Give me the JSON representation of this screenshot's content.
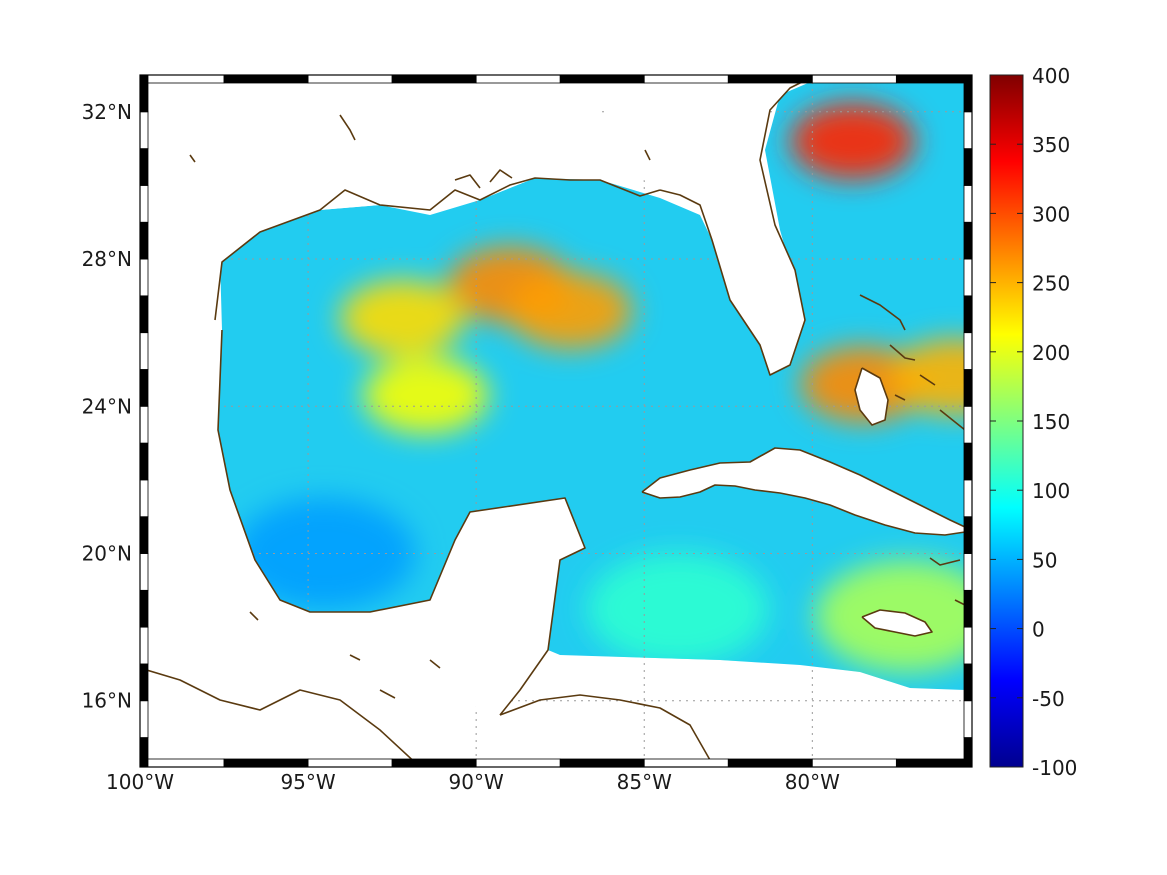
{
  "map": {
    "type": "heatmap",
    "region": "Gulf of Mexico",
    "lon_range": [
      -100,
      -75.25
    ],
    "lat_range": [
      14.2,
      33
    ],
    "x_ticks": [
      {
        "value": -100,
        "label": "100°W"
      },
      {
        "value": -95,
        "label": "95°W"
      },
      {
        "value": -90,
        "label": "90°W"
      },
      {
        "value": -85,
        "label": "85°W"
      },
      {
        "value": -80,
        "label": "80°W"
      }
    ],
    "y_ticks": [
      {
        "value": 32,
        "label": "32°N"
      },
      {
        "value": 28,
        "label": "28°N"
      },
      {
        "value": 24,
        "label": "24°N"
      },
      {
        "value": 20,
        "label": "20°N"
      },
      {
        "value": 16,
        "label": "16°N"
      }
    ],
    "grid": true,
    "frame": "black-white-checkered",
    "coastline_color": "#5a3a10"
  },
  "colorbar": {
    "colormap": "jet",
    "range": [
      -100,
      400
    ],
    "ticks": [
      {
        "value": 400,
        "label": "400"
      },
      {
        "value": 350,
        "label": "350"
      },
      {
        "value": 300,
        "label": "300"
      },
      {
        "value": 250,
        "label": "250"
      },
      {
        "value": 200,
        "label": "200"
      },
      {
        "value": 150,
        "label": "150"
      },
      {
        "value": 100,
        "label": "100"
      },
      {
        "value": 50,
        "label": "50"
      },
      {
        "value": 0,
        "label": "0"
      },
      {
        "value": -50,
        "label": "-50"
      },
      {
        "value": -100,
        "label": "-100"
      }
    ]
  },
  "field_features": [
    {
      "name": "gulf-stream-maximum",
      "lon": -78.8,
      "lat": 31.2,
      "value": 320
    },
    {
      "name": "loop-current-eddy",
      "lon": -89,
      "lat": 27.3,
      "value": 270
    },
    {
      "name": "loop-current-eddy-east",
      "lon": -87.2,
      "lat": 26.6,
      "value": 260
    },
    {
      "name": "western-eddy",
      "lon": -92.2,
      "lat": 26.4,
      "value": 230
    },
    {
      "name": "central-band",
      "lon": -91.5,
      "lat": 24.3,
      "value": 210
    },
    {
      "name": "bahamas-maximum",
      "lon": -78.5,
      "lat": 24.6,
      "value": 270
    },
    {
      "name": "east-bahamas",
      "lon": -75.8,
      "lat": 24.8,
      "value": 250
    },
    {
      "name": "bay-of-campeche-minimum",
      "lon": -94.5,
      "lat": 20,
      "value": 40
    },
    {
      "name": "western-caribbean",
      "lon": -84,
      "lat": 18.5,
      "value": 110
    },
    {
      "name": "jamaica-area",
      "lon": -77.2,
      "lat": 18.3,
      "value": 170
    }
  ]
}
